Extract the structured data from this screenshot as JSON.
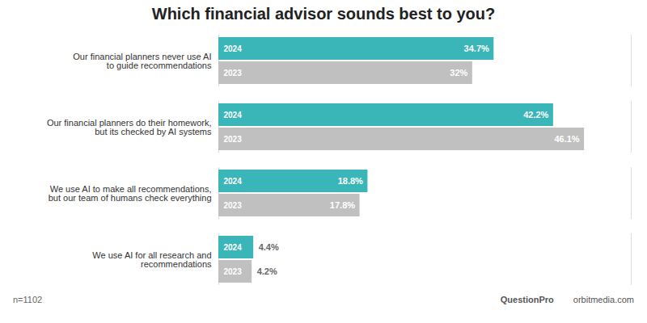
{
  "chart_data": {
    "type": "bar",
    "orientation": "horizontal",
    "title": "Which financial advisor sounds best to you?",
    "categories": [
      "Our financial planners never use AI\nto guide recommendations",
      "Our financial planners do their homework,\nbut its checked by AI systems",
      "We use AI to make all recommendations,\nbut our team of humans check everything",
      "We use AI for all research and\nrecommendations"
    ],
    "series": [
      {
        "name": "2024",
        "color": "#3ab5b8",
        "values": [
          34.7,
          42.2,
          18.8,
          4.4
        ],
        "value_labels": [
          "34.7%",
          "42.2%",
          "18.8%",
          "4.4%"
        ]
      },
      {
        "name": "2023",
        "color": "#c0c0c0",
        "values": [
          32.0,
          46.1,
          17.8,
          4.2
        ],
        "value_labels": [
          "32%",
          "46.1%",
          "17.8%",
          "4.2%"
        ]
      }
    ],
    "xlim": [
      0,
      52
    ],
    "data_labels": true,
    "tick_labels": "y",
    "grid": false,
    "annotations": [
      "n=1102",
      "QuestionPro",
      "orbitmedia.com"
    ]
  }
}
